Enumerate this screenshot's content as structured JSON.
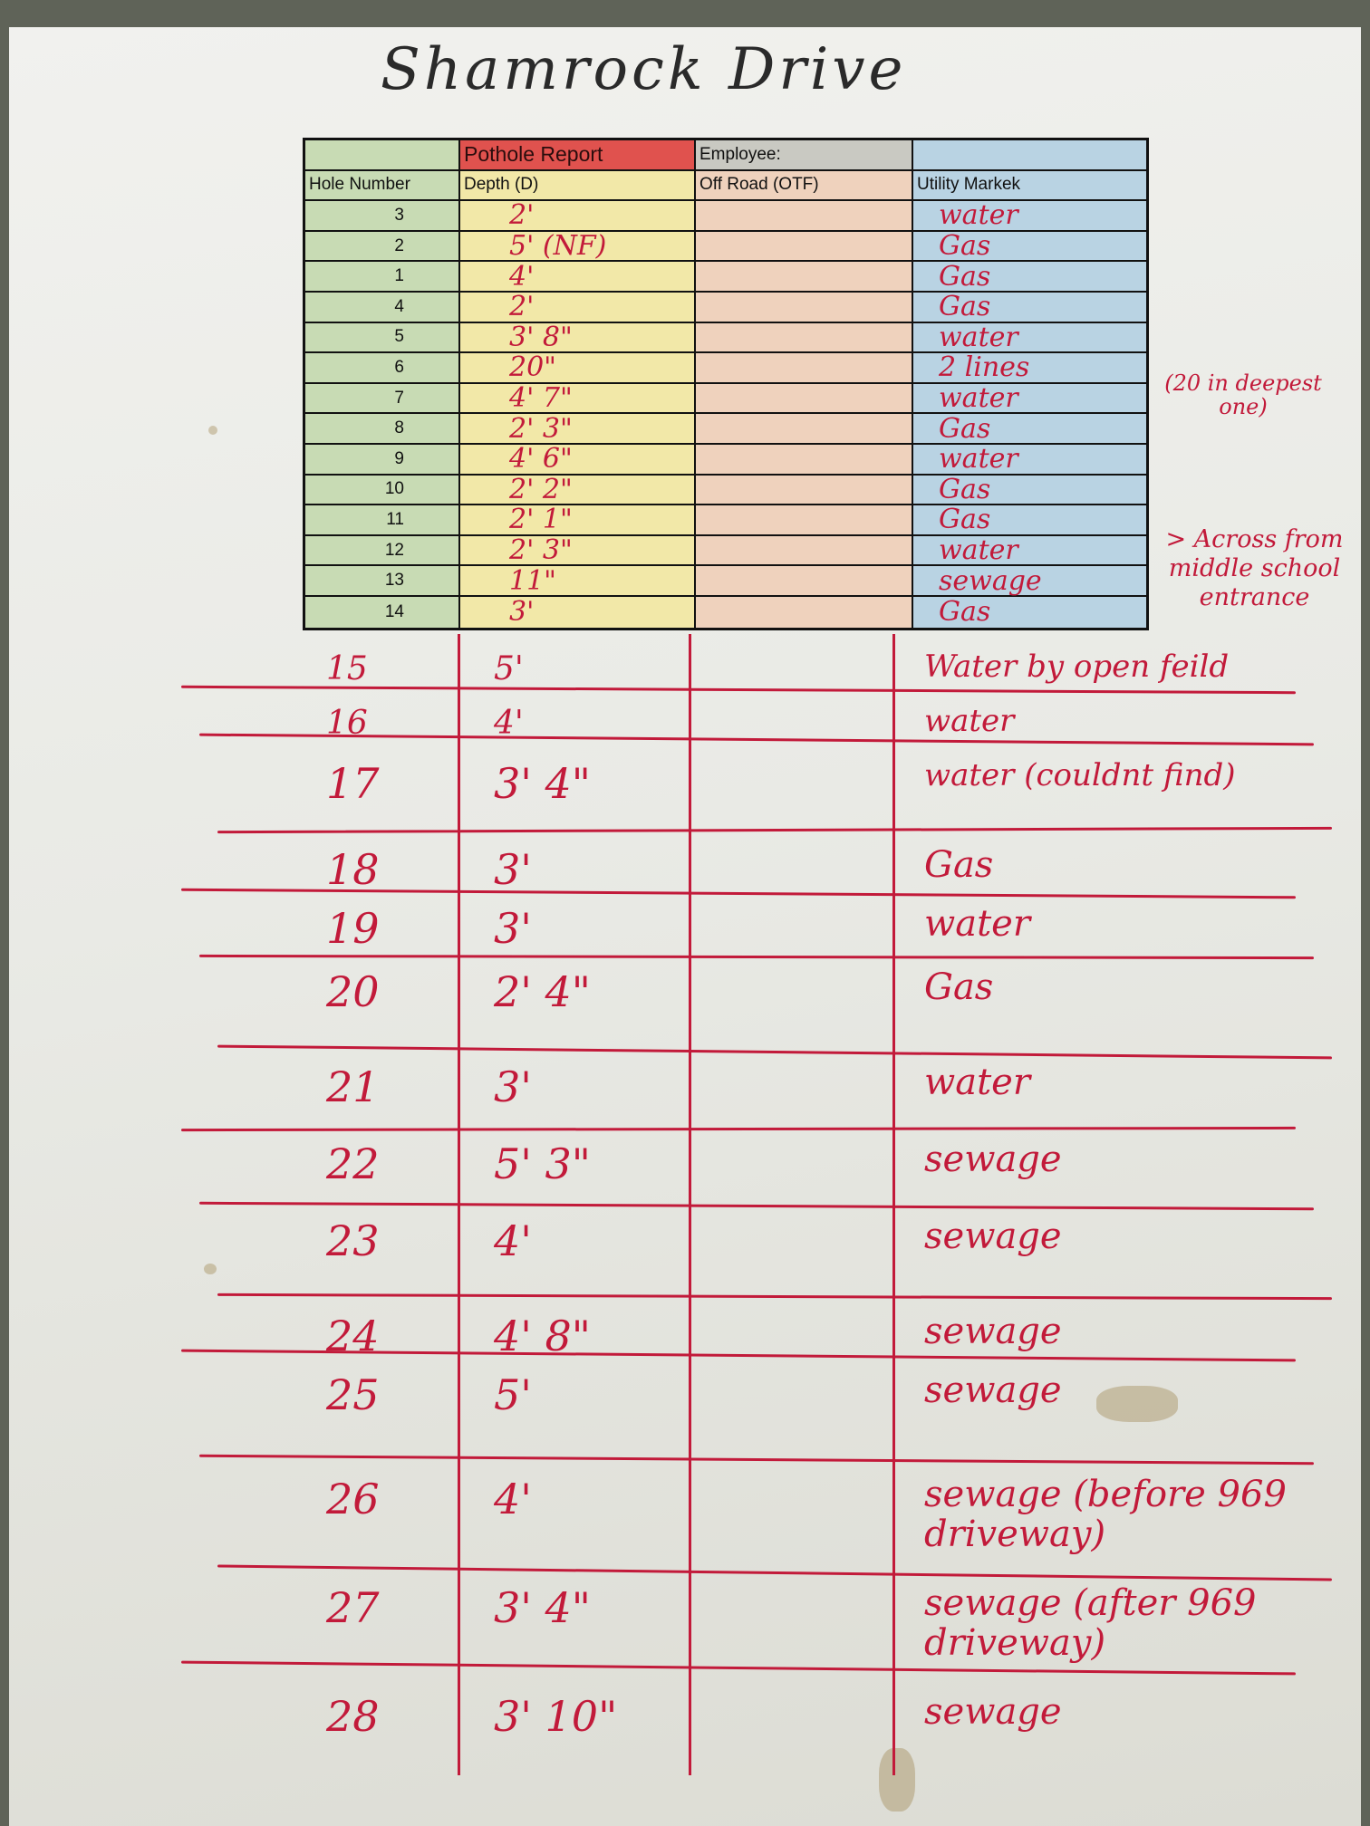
{
  "title": "Shamrock Drive",
  "form": {
    "report_title": "Pothole Report",
    "employee_label": "Employee:",
    "columns": [
      "Hole Number",
      "Depth (D)",
      "Off Road (OTF)",
      "Utility Markek"
    ]
  },
  "colors": {
    "ink": "#c21a3a",
    "hole_col": "#c8dbb4",
    "depth_col": "#f2e8a8",
    "otf_col": "#efd2bd",
    "utility_col": "#b9d3e3",
    "header_red": "#e0524e"
  },
  "printed_rows": [
    {
      "hole": "3",
      "depth": "2'",
      "utility": "water"
    },
    {
      "hole": "2",
      "depth": "5' (NF)",
      "utility": "Gas"
    },
    {
      "hole": "1",
      "depth": "4'",
      "utility": "Gas"
    },
    {
      "hole": "4",
      "depth": "2'",
      "utility": "Gas"
    },
    {
      "hole": "5",
      "depth": "3' 8\"",
      "utility": "water"
    },
    {
      "hole": "6",
      "depth": "20\"",
      "utility": "2 lines"
    },
    {
      "hole": "7",
      "depth": "4' 7\"",
      "utility": "water"
    },
    {
      "hole": "8",
      "depth": "2' 3\"",
      "utility": "Gas"
    },
    {
      "hole": "9",
      "depth": "4' 6\"",
      "utility": "water"
    },
    {
      "hole": "10",
      "depth": "2' 2\"",
      "utility": "Gas"
    },
    {
      "hole": "11",
      "depth": "2' 1\"",
      "utility": "Gas"
    },
    {
      "hole": "12",
      "depth": "2' 3\"",
      "utility": "water"
    },
    {
      "hole": "13",
      "depth": "11\"",
      "utility": "sewage"
    },
    {
      "hole": "14",
      "depth": "3'",
      "utility": "Gas"
    }
  ],
  "handwritten_rows": [
    {
      "hole": "15",
      "depth": "5'",
      "utility": "Water by open feild"
    },
    {
      "hole": "16",
      "depth": "4'",
      "utility": "water"
    },
    {
      "hole": "17",
      "depth": "3' 4\"",
      "utility": "water (couldnt find)"
    },
    {
      "hole": "18",
      "depth": "3'",
      "utility": "Gas"
    },
    {
      "hole": "19",
      "depth": "3'",
      "utility": "water"
    },
    {
      "hole": "20",
      "depth": "2' 4\"",
      "utility": "Gas"
    },
    {
      "hole": "21",
      "depth": "3'",
      "utility": "water"
    },
    {
      "hole": "22",
      "depth": "5' 3\"",
      "utility": "sewage"
    },
    {
      "hole": "23",
      "depth": "4'",
      "utility": "sewage"
    },
    {
      "hole": "24",
      "depth": "4' 8\"",
      "utility": "sewage"
    },
    {
      "hole": "25",
      "depth": "5'",
      "utility": "sewage"
    },
    {
      "hole": "26",
      "depth": "4'",
      "utility": "sewage (before 969 driveway)"
    },
    {
      "hole": "27",
      "depth": "3' 4\"",
      "utility": "sewage (after 969 driveway)"
    },
    {
      "hole": "28",
      "depth": "3' 10\"",
      "utility": "sewage"
    }
  ],
  "side_notes": {
    "deepest": "(20 in deepest one)",
    "across": "> Across from middle school entrance"
  }
}
